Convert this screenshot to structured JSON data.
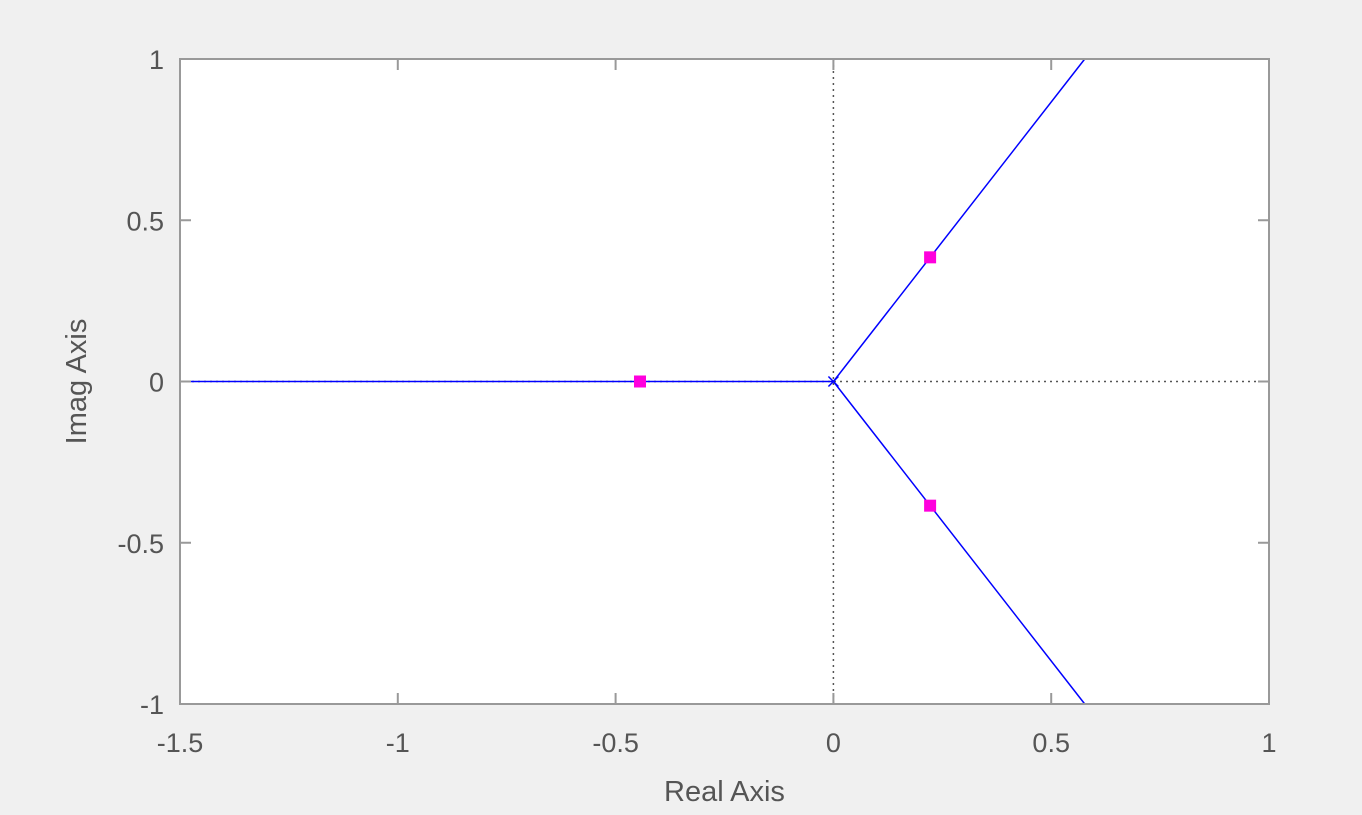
{
  "chart_data": {
    "type": "line",
    "title": "",
    "xlabel": "Real Axis",
    "ylabel": "Imag Axis",
    "xlim": [
      -1.5,
      1
    ],
    "ylim": [
      -1,
      1
    ],
    "xticks": [
      -1.5,
      -1,
      -0.5,
      0,
      0.5,
      1
    ],
    "yticks": [
      -1,
      -0.5,
      0,
      0.5,
      1
    ],
    "xtick_labels": [
      "-1.5",
      "-1",
      "-0.5",
      "0",
      "0.5",
      "1"
    ],
    "ytick_labels": [
      "-1",
      "-0.5",
      "0",
      "0.5",
      "1"
    ],
    "grid": false,
    "series": [
      {
        "name": "root-locus-branch-real",
        "color": "#0000ff",
        "x": [
          0,
          -1.5
        ],
        "y": [
          0,
          0
        ]
      },
      {
        "name": "root-locus-branch-upper",
        "color": "#0000ff",
        "x": [
          0,
          0.577
        ],
        "y": [
          0,
          1
        ]
      },
      {
        "name": "root-locus-branch-lower",
        "color": "#0000ff",
        "x": [
          0,
          0.577
        ],
        "y": [
          0,
          -1
        ]
      }
    ],
    "poles": [
      {
        "x": 0,
        "y": 0,
        "marker": "x"
      }
    ],
    "closed_loop_poles": [
      {
        "x": -0.444,
        "y": 0
      },
      {
        "x": 0.222,
        "y": 0.385
      },
      {
        "x": 0.222,
        "y": -0.385
      }
    ],
    "reference_lines": [
      {
        "orientation": "vertical",
        "value": 0,
        "style": "dotted"
      },
      {
        "orientation": "horizontal",
        "value": 0,
        "style": "dotted"
      }
    ],
    "colors": {
      "locus": "#0000ff",
      "marker": "#ff00dd",
      "axes": "#999999",
      "text": "#555555",
      "background": "#f0f0f0",
      "plot_background": "#ffffff"
    }
  }
}
